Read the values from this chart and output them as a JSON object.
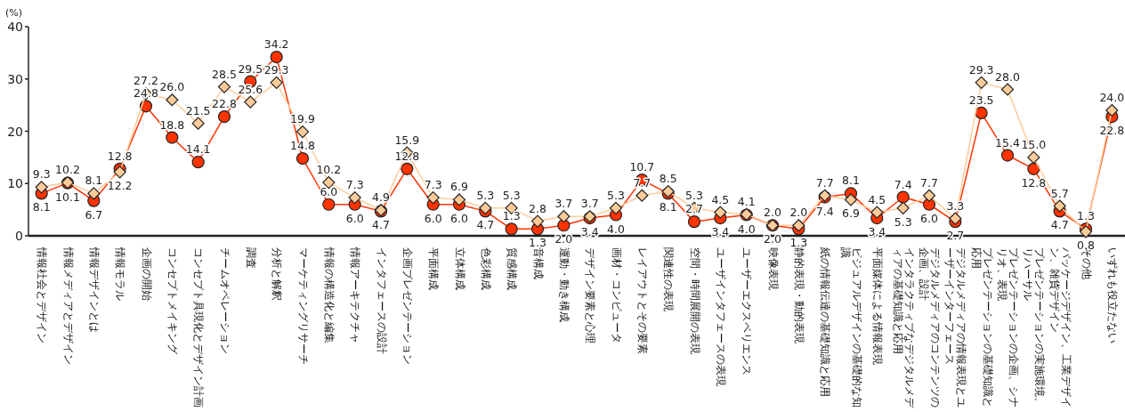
{
  "chart_data": {
    "type": "line",
    "ylabel": "(%)",
    "categories": [
      "情報社会とデザイン",
      "情報メディアとデザイン",
      "情報デザインとは",
      "情報モラル",
      "企画の開始",
      "コンセプトメイキング",
      "コンセプト具現化とデザイン計画",
      "チームオペレーション",
      "調査",
      "分析と解釈",
      "マーケティングリサーチ",
      "情報の構造化と編集",
      "情報アーキテクチャ",
      "インタフェースの設計",
      "企画プレゼンテーション",
      "平面構成",
      "立体構成",
      "色彩構成",
      "質感構成",
      "音構成",
      "運動・動き構成",
      "デザイン要素と心理",
      "画材・コンピュータ",
      "レイアウトとその要素",
      "関連性の表現",
      "空間・時間展開の表現",
      "ユーザインタフェースの表現",
      "ユーザーエクスペリエンス",
      "映像表現",
      "静的表現・動的表現",
      "紙の情報伝達の基礎知識と応用",
      "ビジュアルデザインの基礎的な知識",
      "平面媒体による情報表現",
      "インタラクティブなデジタルメディアの基礎知識と応用",
      "デジタルメディアのコンテンツの企画、設計",
      "デジタルメディアの情報表現とユーザーインターフェース",
      "プレゼンテーションの基礎知識と応用",
      "プレゼンテーションの企画、シナリオ、表現",
      "プレゼンテーションの実施環境、リハーサル",
      "パッケージデザイン、工業デザイン、雑貨デザイン",
      "その他",
      "いずれも役立たない"
    ],
    "series": [
      {
        "color": "#ff3300",
        "marker": "circle",
        "values": [
          8.1,
          10.1,
          6.7,
          12.8,
          24.8,
          18.8,
          14.1,
          22.8,
          29.5,
          34.2,
          14.8,
          6.0,
          6.0,
          4.7,
          12.8,
          6.0,
          6.0,
          4.7,
          1.3,
          1.3,
          2.0,
          3.4,
          4.0,
          10.7,
          8.1,
          2.7,
          3.4,
          4.0,
          2.0,
          1.3,
          7.4,
          8.1,
          3.4,
          7.4,
          6.0,
          2.7,
          23.5,
          15.4,
          12.8,
          4.7,
          1.3,
          22.8
        ],
        "value_labels": [
          "8.1",
          "10.1",
          "6.7",
          "12.8",
          "24.8",
          "18.8",
          "14.1",
          "22.8",
          "29.5",
          "34.2",
          "14.8",
          "6.0",
          "6.0",
          "4.7",
          "12.8",
          "6.0",
          "6.0",
          "4.7",
          "1.3",
          "1.3",
          "2.0",
          "3.4",
          "4.0",
          "10.7",
          "8.1",
          "2.7",
          "3.4",
          "4.0",
          "2.0",
          "1.3",
          "7.4",
          "8.1",
          "3.4",
          "7.4",
          "6.0",
          "2.7",
          "23.5",
          "15.4",
          "12.8",
          "4.7",
          "1.3",
          "22.8"
        ]
      },
      {
        "color": "#ffcc99",
        "marker": "diamond",
        "values": [
          9.3,
          10.2,
          8.1,
          12.2,
          27.2,
          26.0,
          21.5,
          28.5,
          25.6,
          29.3,
          19.9,
          10.2,
          7.3,
          4.9,
          15.9,
          7.3,
          6.9,
          5.3,
          5.3,
          2.8,
          3.7,
          3.7,
          5.3,
          7.7,
          8.5,
          5.3,
          4.5,
          4.1,
          2.0,
          2.0,
          7.7,
          6.9,
          4.5,
          5.3,
          7.7,
          3.3,
          29.3,
          28.0,
          15.0,
          5.7,
          0.8,
          24.0
        ],
        "value_labels": [
          "9.3",
          "10.2",
          "8.1",
          "12.2",
          "27.2",
          "26.0",
          "21.5",
          "28.5",
          "25.6",
          "29.3",
          "19.9",
          "10.2",
          "7.3",
          "4.9",
          "15.9",
          "7.3",
          "6.9",
          "5.3",
          "5.3",
          "2.8",
          "3.7",
          "3.7",
          "5.3",
          "7.7",
          "8.5",
          "5.3",
          "4.5",
          "4.1",
          "2.0",
          "2.0",
          "7.7",
          "6.9",
          "4.5",
          "5.3",
          "7.7",
          "3.3",
          "29.3",
          "28.0",
          "15.0",
          "5.7",
          "0.8",
          "24.0"
        ]
      }
    ],
    "ylim": [
      0,
      40
    ],
    "yticks": [
      0,
      10,
      20,
      30,
      40
    ],
    "line_style": "solid"
  }
}
